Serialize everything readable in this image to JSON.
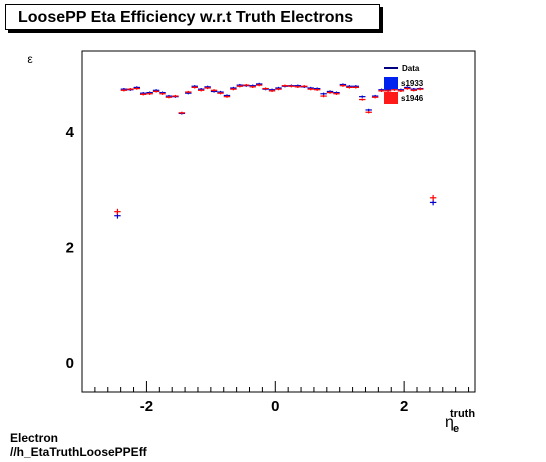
{
  "chart_data": {
    "type": "scatter",
    "title": "LoosePP Eta Efficiency w.r.t Truth Electrons",
    "ylabel": "ε",
    "xlabel_main": "η",
    "xlabel_sub": "e",
    "xlabel_sup": "truth",
    "xlim": [
      -3.0,
      3.1
    ],
    "ylim": [
      -0.5,
      5.4
    ],
    "xticks": [
      -2,
      0,
      2
    ],
    "xtick_labels": [
      "-2",
      "0",
      "2"
    ],
    "yticks": [
      0,
      2,
      4
    ],
    "ytick_labels": [
      "0",
      "2",
      "4"
    ],
    "legend_position": "top-right",
    "legend_title": "Data",
    "series": [
      {
        "name": "s1933",
        "color": "#0000cc",
        "points": [
          {
            "x": -2.45,
            "y": 2.55,
            "xerr": 0.05,
            "yerr": 0.05
          },
          {
            "x": -2.35,
            "y": 4.74,
            "xerr": 0.05,
            "yerr": 0.02
          },
          {
            "x": -2.25,
            "y": 4.73,
            "xerr": 0.05,
            "yerr": 0.02
          },
          {
            "x": -2.15,
            "y": 4.77,
            "xerr": 0.05,
            "yerr": 0.02
          },
          {
            "x": -2.05,
            "y": 4.67,
            "xerr": 0.05,
            "yerr": 0.02
          },
          {
            "x": -1.95,
            "y": 4.68,
            "xerr": 0.05,
            "yerr": 0.02
          },
          {
            "x": -1.85,
            "y": 4.72,
            "xerr": 0.05,
            "yerr": 0.02
          },
          {
            "x": -1.75,
            "y": 4.68,
            "xerr": 0.05,
            "yerr": 0.02
          },
          {
            "x": -1.65,
            "y": 4.62,
            "xerr": 0.05,
            "yerr": 0.02
          },
          {
            "x": -1.55,
            "y": 4.61,
            "xerr": 0.05,
            "yerr": 0.02
          },
          {
            "x": -1.45,
            "y": 4.32,
            "xerr": 0.05,
            "yerr": 0.02
          },
          {
            "x": -1.35,
            "y": 4.67,
            "xerr": 0.05,
            "yerr": 0.02
          },
          {
            "x": -1.25,
            "y": 4.79,
            "xerr": 0.05,
            "yerr": 0.02
          },
          {
            "x": -1.15,
            "y": 4.74,
            "xerr": 0.05,
            "yerr": 0.02
          },
          {
            "x": -1.05,
            "y": 4.78,
            "xerr": 0.05,
            "yerr": 0.02
          },
          {
            "x": -0.95,
            "y": 4.7,
            "xerr": 0.05,
            "yerr": 0.02
          },
          {
            "x": -0.85,
            "y": 4.69,
            "xerr": 0.05,
            "yerr": 0.02
          },
          {
            "x": -0.75,
            "y": 4.63,
            "xerr": 0.05,
            "yerr": 0.02
          },
          {
            "x": -0.65,
            "y": 4.76,
            "xerr": 0.05,
            "yerr": 0.02
          },
          {
            "x": -0.55,
            "y": 4.81,
            "xerr": 0.05,
            "yerr": 0.02
          },
          {
            "x": -0.45,
            "y": 4.8,
            "xerr": 0.05,
            "yerr": 0.02
          },
          {
            "x": -0.35,
            "y": 4.8,
            "xerr": 0.05,
            "yerr": 0.02
          },
          {
            "x": -0.25,
            "y": 4.83,
            "xerr": 0.05,
            "yerr": 0.02
          },
          {
            "x": -0.15,
            "y": 4.74,
            "xerr": 0.05,
            "yerr": 0.02
          },
          {
            "x": -0.05,
            "y": 4.73,
            "xerr": 0.05,
            "yerr": 0.02
          },
          {
            "x": 0.05,
            "y": 4.76,
            "xerr": 0.05,
            "yerr": 0.02
          },
          {
            "x": 0.15,
            "y": 4.79,
            "xerr": 0.05,
            "yerr": 0.02
          },
          {
            "x": 0.25,
            "y": 4.8,
            "xerr": 0.05,
            "yerr": 0.02
          },
          {
            "x": 0.35,
            "y": 4.8,
            "xerr": 0.05,
            "yerr": 0.02
          },
          {
            "x": 0.45,
            "y": 4.78,
            "xerr": 0.05,
            "yerr": 0.02
          },
          {
            "x": 0.55,
            "y": 4.76,
            "xerr": 0.05,
            "yerr": 0.02
          },
          {
            "x": 0.65,
            "y": 4.75,
            "xerr": 0.05,
            "yerr": 0.02
          },
          {
            "x": 0.75,
            "y": 4.66,
            "xerr": 0.05,
            "yerr": 0.02
          },
          {
            "x": 0.85,
            "y": 4.7,
            "xerr": 0.05,
            "yerr": 0.02
          },
          {
            "x": 0.95,
            "y": 4.68,
            "xerr": 0.05,
            "yerr": 0.02
          },
          {
            "x": 1.05,
            "y": 4.82,
            "xerr": 0.05,
            "yerr": 0.02
          },
          {
            "x": 1.15,
            "y": 4.79,
            "xerr": 0.05,
            "yerr": 0.02
          },
          {
            "x": 1.25,
            "y": 4.79,
            "xerr": 0.05,
            "yerr": 0.02
          },
          {
            "x": 1.35,
            "y": 4.61,
            "xerr": 0.05,
            "yerr": 0.02
          },
          {
            "x": 1.45,
            "y": 4.38,
            "xerr": 0.05,
            "yerr": 0.02
          },
          {
            "x": 1.55,
            "y": 4.62,
            "xerr": 0.05,
            "yerr": 0.02
          },
          {
            "x": 1.65,
            "y": 4.73,
            "xerr": 0.05,
            "yerr": 0.02
          },
          {
            "x": 1.75,
            "y": 4.73,
            "xerr": 0.05,
            "yerr": 0.02
          },
          {
            "x": 1.85,
            "y": 4.75,
            "xerr": 0.05,
            "yerr": 0.02
          },
          {
            "x": 1.95,
            "y": 4.73,
            "xerr": 0.05,
            "yerr": 0.02
          },
          {
            "x": 2.05,
            "y": 4.77,
            "xerr": 0.05,
            "yerr": 0.02
          },
          {
            "x": 2.15,
            "y": 4.74,
            "xerr": 0.05,
            "yerr": 0.02
          },
          {
            "x": 2.25,
            "y": 4.75,
            "xerr": 0.05,
            "yerr": 0.02
          },
          {
            "x": 2.45,
            "y": 2.78,
            "xerr": 0.05,
            "yerr": 0.05
          }
        ]
      },
      {
        "name": "s1946",
        "color": "#ff0000",
        "points": [
          {
            "x": -2.45,
            "y": 2.62,
            "xerr": 0.05,
            "yerr": 0.05
          },
          {
            "x": -2.35,
            "y": 4.72,
            "xerr": 0.05,
            "yerr": 0.02
          },
          {
            "x": -2.25,
            "y": 4.74,
            "xerr": 0.05,
            "yerr": 0.02
          },
          {
            "x": -2.15,
            "y": 4.75,
            "xerr": 0.05,
            "yerr": 0.02
          },
          {
            "x": -2.05,
            "y": 4.65,
            "xerr": 0.05,
            "yerr": 0.02
          },
          {
            "x": -1.95,
            "y": 4.66,
            "xerr": 0.05,
            "yerr": 0.02
          },
          {
            "x": -1.85,
            "y": 4.7,
            "xerr": 0.05,
            "yerr": 0.02
          },
          {
            "x": -1.75,
            "y": 4.66,
            "xerr": 0.05,
            "yerr": 0.02
          },
          {
            "x": -1.65,
            "y": 4.6,
            "xerr": 0.05,
            "yerr": 0.02
          },
          {
            "x": -1.55,
            "y": 4.62,
            "xerr": 0.05,
            "yerr": 0.02
          },
          {
            "x": -1.45,
            "y": 4.33,
            "xerr": 0.05,
            "yerr": 0.02
          },
          {
            "x": -1.35,
            "y": 4.69,
            "xerr": 0.05,
            "yerr": 0.02
          },
          {
            "x": -1.25,
            "y": 4.77,
            "xerr": 0.05,
            "yerr": 0.02
          },
          {
            "x": -1.15,
            "y": 4.72,
            "xerr": 0.05,
            "yerr": 0.02
          },
          {
            "x": -1.05,
            "y": 4.76,
            "xerr": 0.05,
            "yerr": 0.02
          },
          {
            "x": -0.95,
            "y": 4.72,
            "xerr": 0.05,
            "yerr": 0.02
          },
          {
            "x": -0.85,
            "y": 4.67,
            "xerr": 0.05,
            "yerr": 0.02
          },
          {
            "x": -0.75,
            "y": 4.61,
            "xerr": 0.05,
            "yerr": 0.02
          },
          {
            "x": -0.65,
            "y": 4.74,
            "xerr": 0.05,
            "yerr": 0.02
          },
          {
            "x": -0.55,
            "y": 4.79,
            "xerr": 0.05,
            "yerr": 0.02
          },
          {
            "x": -0.45,
            "y": 4.81,
            "xerr": 0.05,
            "yerr": 0.02
          },
          {
            "x": -0.35,
            "y": 4.78,
            "xerr": 0.05,
            "yerr": 0.02
          },
          {
            "x": -0.25,
            "y": 4.81,
            "xerr": 0.05,
            "yerr": 0.02
          },
          {
            "x": -0.15,
            "y": 4.75,
            "xerr": 0.05,
            "yerr": 0.02
          },
          {
            "x": -0.05,
            "y": 4.71,
            "xerr": 0.05,
            "yerr": 0.02
          },
          {
            "x": 0.05,
            "y": 4.74,
            "xerr": 0.05,
            "yerr": 0.02
          },
          {
            "x": 0.15,
            "y": 4.8,
            "xerr": 0.05,
            "yerr": 0.02
          },
          {
            "x": 0.25,
            "y": 4.79,
            "xerr": 0.05,
            "yerr": 0.02
          },
          {
            "x": 0.35,
            "y": 4.78,
            "xerr": 0.05,
            "yerr": 0.02
          },
          {
            "x": 0.45,
            "y": 4.79,
            "xerr": 0.05,
            "yerr": 0.02
          },
          {
            "x": 0.55,
            "y": 4.74,
            "xerr": 0.05,
            "yerr": 0.02
          },
          {
            "x": 0.65,
            "y": 4.73,
            "xerr": 0.05,
            "yerr": 0.02
          },
          {
            "x": 0.75,
            "y": 4.62,
            "xerr": 0.05,
            "yerr": 0.02
          },
          {
            "x": 0.85,
            "y": 4.68,
            "xerr": 0.05,
            "yerr": 0.02
          },
          {
            "x": 0.95,
            "y": 4.66,
            "xerr": 0.05,
            "yerr": 0.02
          },
          {
            "x": 1.05,
            "y": 4.8,
            "xerr": 0.05,
            "yerr": 0.02
          },
          {
            "x": 1.15,
            "y": 4.77,
            "xerr": 0.05,
            "yerr": 0.02
          },
          {
            "x": 1.25,
            "y": 4.77,
            "xerr": 0.05,
            "yerr": 0.02
          },
          {
            "x": 1.35,
            "y": 4.56,
            "xerr": 0.05,
            "yerr": 0.02
          },
          {
            "x": 1.45,
            "y": 4.34,
            "xerr": 0.05,
            "yerr": 0.02
          },
          {
            "x": 1.55,
            "y": 4.6,
            "xerr": 0.05,
            "yerr": 0.02
          },
          {
            "x": 1.65,
            "y": 4.71,
            "xerr": 0.05,
            "yerr": 0.02
          },
          {
            "x": 1.75,
            "y": 4.71,
            "xerr": 0.05,
            "yerr": 0.02
          },
          {
            "x": 1.85,
            "y": 4.73,
            "xerr": 0.05,
            "yerr": 0.02
          },
          {
            "x": 1.95,
            "y": 4.71,
            "xerr": 0.05,
            "yerr": 0.02
          },
          {
            "x": 2.05,
            "y": 4.75,
            "xerr": 0.05,
            "yerr": 0.02
          },
          {
            "x": 2.15,
            "y": 4.72,
            "xerr": 0.05,
            "yerr": 0.02
          },
          {
            "x": 2.25,
            "y": 4.74,
            "xerr": 0.05,
            "yerr": 0.02
          },
          {
            "x": 2.45,
            "y": 2.86,
            "xerr": 0.05,
            "yerr": 0.05
          }
        ]
      }
    ]
  },
  "footer": {
    "line1": "Electron",
    "line2": "//h_EtaTruthLoosePPEff"
  }
}
